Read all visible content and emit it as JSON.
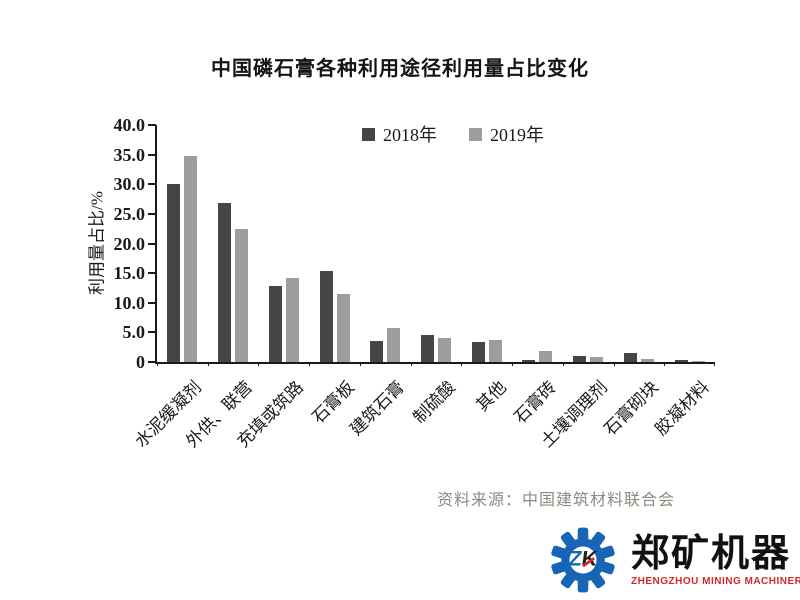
{
  "title": "中国磷石膏各种利用途径利用量占比变化",
  "chart_data": {
    "type": "bar",
    "title": "中国磷石膏各种利用途径利用量占比变化",
    "categories": [
      "水泥缓凝剂",
      "外供、联营",
      "充填或筑路",
      "石膏板",
      "建筑石膏",
      "制硫酸",
      "其他",
      "石膏砖",
      "土壤调理剂",
      "石膏砌块",
      "胶凝材料"
    ],
    "series": [
      {
        "name": "2018年",
        "color": "#454545",
        "values": [
          30.0,
          26.8,
          12.9,
          15.3,
          3.5,
          4.5,
          3.3,
          0.4,
          1.0,
          1.6,
          0.3
        ]
      },
      {
        "name": "2019年",
        "color": "#9d9d9d",
        "values": [
          34.7,
          22.5,
          14.2,
          11.5,
          5.7,
          4.0,
          3.7,
          1.9,
          0.8,
          0.5,
          0.15
        ]
      }
    ],
    "xlabel": "",
    "ylabel": "利用量占比/%",
    "ylim": [
      0,
      40
    ],
    "ytick_step": 5,
    "ytick_labels": [
      "0",
      "5.0",
      "10.0",
      "15.0",
      "20.0",
      "25.0",
      "30.0",
      "35.0",
      "40.0"
    ],
    "grid": false,
    "legend_position": "top-inside"
  },
  "source_note": "资料来源：中国建筑材料联合会",
  "logo": {
    "monogram_z": "Z",
    "monogram_k": "K",
    "company_name": "郑矿机器",
    "company_subtitle": "ZHENGZHOU MINING MACHINERY",
    "brand_blue": "#1766b5",
    "brand_red": "#d3292a"
  }
}
